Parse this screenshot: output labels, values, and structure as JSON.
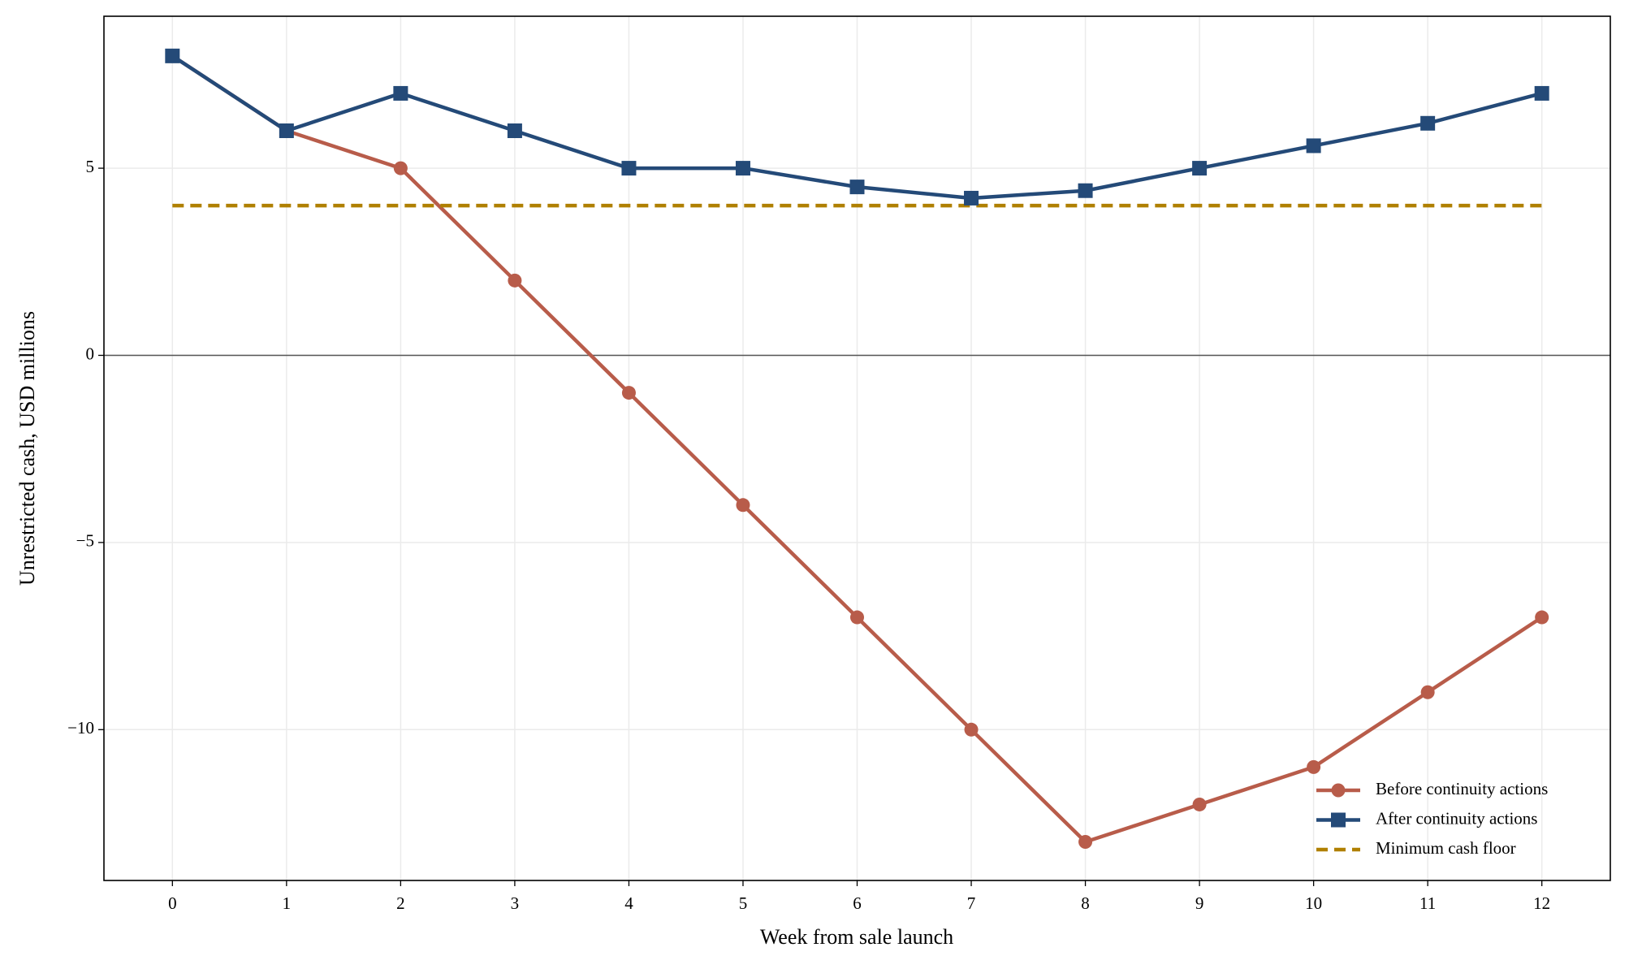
{
  "chart_data": {
    "type": "line",
    "x_label": "Week from sale launch",
    "y_label": "Unrestricted cash, USD millions",
    "x": [
      0,
      1,
      2,
      3,
      4,
      5,
      6,
      7,
      8,
      9,
      10,
      11,
      12
    ],
    "series": [
      {
        "name": "Before continuity actions",
        "color": "#b85c4a",
        "marker": "circle",
        "dashed": false,
        "values": [
          8,
          6,
          5,
          2,
          -1,
          -4,
          -7,
          -10,
          -13,
          -12,
          -11,
          -9,
          -7
        ]
      },
      {
        "name": "After continuity actions",
        "color": "#244a78",
        "marker": "square",
        "dashed": false,
        "values": [
          8,
          6,
          7,
          6,
          5,
          5,
          4.5,
          4.2,
          4.4,
          5,
          5.6,
          6.2,
          7
        ]
      },
      {
        "name": "Minimum cash floor",
        "color": "#b08000",
        "marker": "none",
        "dashed": true,
        "values": [
          4,
          4,
          4,
          4,
          4,
          4,
          4,
          4,
          4,
          4,
          4,
          4,
          4
        ]
      }
    ],
    "baseline": 0,
    "xlim": [
      -0.6,
      12.6
    ],
    "ylim": [
      -14.03,
      9.06
    ],
    "xticks": [
      0,
      1,
      2,
      3,
      4,
      5,
      6,
      7,
      8,
      9,
      10,
      11,
      12
    ],
    "yticks": [
      {
        "value": -10,
        "label": "−10"
      },
      {
        "value": -5,
        "label": "−5"
      },
      0,
      5
    ],
    "grid": true,
    "legend": "lower right"
  }
}
